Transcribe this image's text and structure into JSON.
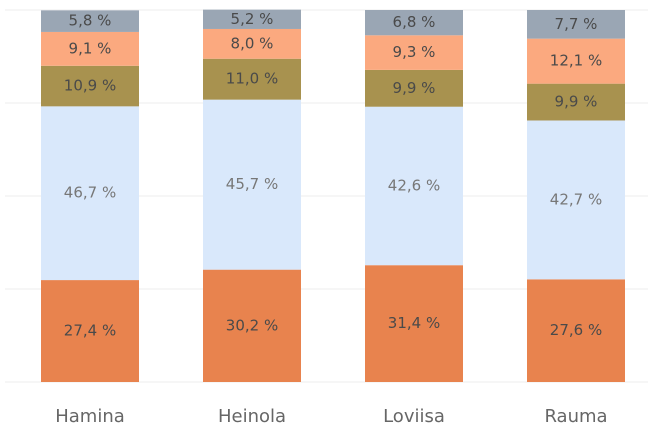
{
  "chart_data": {
    "type": "stacked-bar",
    "categories": [
      "Hamina",
      "Heinola",
      "Loviisa",
      "Rauma"
    ],
    "series": [
      {
        "color": "#e8834e",
        "values": [
          27.4,
          30.2,
          31.4,
          27.6
        ],
        "value_labels": [
          "27,4 %",
          "30,2 %",
          "31,4 %",
          "27,6 %"
        ]
      },
      {
        "color": "#d9e8fb",
        "values": [
          46.7,
          45.7,
          42.6,
          42.7
        ],
        "value_labels": [
          "46,7 %",
          "45,7 %",
          "42,6 %",
          "42,7 %"
        ]
      },
      {
        "color": "#a8924f",
        "values": [
          10.9,
          11.0,
          9.9,
          9.9
        ],
        "value_labels": [
          "10,9 %",
          "11,0 %",
          "9,9 %",
          "9,9 %"
        ]
      },
      {
        "color": "#fba97f",
        "values": [
          9.1,
          8.0,
          9.3,
          12.1
        ],
        "value_labels": [
          "9,1 %",
          "8,0 %",
          "9,3 %",
          "12,1 %"
        ]
      },
      {
        "color": "#9aa6b4",
        "values": [
          5.8,
          5.2,
          6.8,
          7.7
        ],
        "value_labels": [
          "5,8 %",
          "5,2 %",
          "6,8 %",
          "7,7 %"
        ]
      }
    ],
    "ylim": [
      0,
      100
    ],
    "yticks": [
      0,
      25,
      50,
      75,
      100
    ],
    "grid": true
  }
}
